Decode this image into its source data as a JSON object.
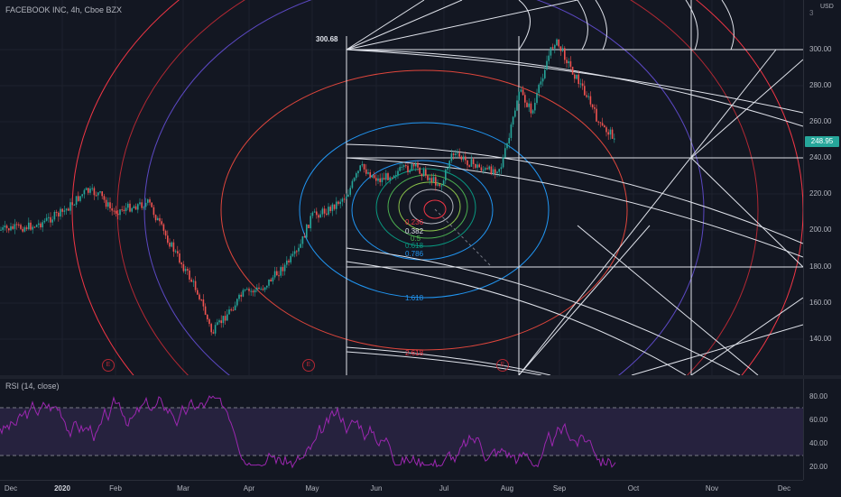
{
  "symbol": {
    "title": "FACEBOOK INC, 4h, Cboe BZX",
    "currency": "USD",
    "last_price": "248.95",
    "peak_label": "300.68"
  },
  "price_axis": {
    "ticks": [
      "300.00",
      "280.00",
      "260.00",
      "240.00",
      "220.00",
      "200.00",
      "180.00",
      "160.00",
      "140.00"
    ],
    "top_partial": "3"
  },
  "rsi": {
    "title": "RSI (14, close)",
    "ticks": [
      "80.00",
      "60.00",
      "40.00",
      "20.00"
    ],
    "upper_band": 70,
    "lower_band": 30
  },
  "time_axis": {
    "labels": [
      "Dec",
      "2020",
      "Feb",
      "Mar",
      "Apr",
      "May",
      "Jun",
      "Jul",
      "Aug",
      "Sep",
      "Oct",
      "Nov",
      "Dec"
    ]
  },
  "fib_levels": [
    {
      "label": "0.236",
      "color": "#f23645"
    },
    {
      "label": "0.382",
      "color": "#e0e3eb"
    },
    {
      "label": "0.5",
      "color": "#4caf50"
    },
    {
      "label": "0.618",
      "color": "#089981"
    },
    {
      "label": "0.786",
      "color": "#2196f3"
    },
    {
      "label": "1.618",
      "color": "#2196f3"
    },
    {
      "label": "2.618",
      "color": "#f23645"
    }
  ],
  "events": [
    {
      "label": "E"
    },
    {
      "label": "E"
    },
    {
      "label": "E"
    }
  ],
  "colors": {
    "background": "#131722",
    "candle_up": "#26a69a",
    "candle_down": "#ef5350",
    "rsi_line": "#9c27b0",
    "rsi_band": "#7e57c2",
    "grid": "#1e222d"
  }
}
